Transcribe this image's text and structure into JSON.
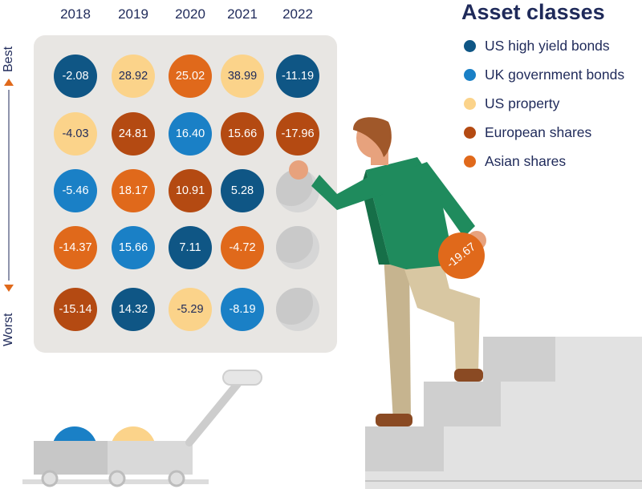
{
  "chart_data": {
    "type": "table",
    "years": [
      "2018",
      "2019",
      "2020",
      "2021",
      "2022"
    ],
    "axis": {
      "best_label": "Best",
      "worst_label": "Worst"
    },
    "legend_title": "Asset classes",
    "legend_position": "top-right",
    "asset_classes": [
      {
        "key": "hy",
        "name": "US high yield bonds",
        "color": "#0f5685"
      },
      {
        "key": "uk",
        "name": "UK government bonds",
        "color": "#1a80c6"
      },
      {
        "key": "prop",
        "name": "US property",
        "color": "#fbd38a"
      },
      {
        "key": "eu",
        "name": "European shares",
        "color": "#b44a12"
      },
      {
        "key": "asia",
        "name": "Asian shares",
        "color": "#e0691b"
      }
    ],
    "ranks": [
      [
        {
          "value": "-2.08",
          "cls": "hy"
        },
        {
          "value": "28.92",
          "cls": "prop"
        },
        {
          "value": "25.02",
          "cls": "asia"
        },
        {
          "value": "38.99",
          "cls": "prop"
        },
        {
          "value": "-11.19",
          "cls": "hy"
        }
      ],
      [
        {
          "value": "-4.03",
          "cls": "prop"
        },
        {
          "value": "24.81",
          "cls": "eu"
        },
        {
          "value": "16.40",
          "cls": "uk"
        },
        {
          "value": "15.66",
          "cls": "eu"
        },
        {
          "value": "-17.96",
          "cls": "eu"
        }
      ],
      [
        {
          "value": "-5.46",
          "cls": "uk"
        },
        {
          "value": "18.17",
          "cls": "asia"
        },
        {
          "value": "10.91",
          "cls": "eu"
        },
        {
          "value": "5.28",
          "cls": "hy"
        },
        null
      ],
      [
        {
          "value": "-14.37",
          "cls": "asia"
        },
        {
          "value": "15.66",
          "cls": "uk"
        },
        {
          "value": "7.11",
          "cls": "hy"
        },
        {
          "value": "-4.72",
          "cls": "asia"
        },
        null
      ],
      [
        {
          "value": "-15.14",
          "cls": "eu"
        },
        {
          "value": "14.32",
          "cls": "hy"
        },
        {
          "value": "-5.29",
          "cls": "prop"
        },
        {
          "value": "-8.19",
          "cls": "uk"
        },
        null
      ]
    ],
    "held_ball": {
      "value": "-19.67",
      "cls": "asia"
    }
  }
}
